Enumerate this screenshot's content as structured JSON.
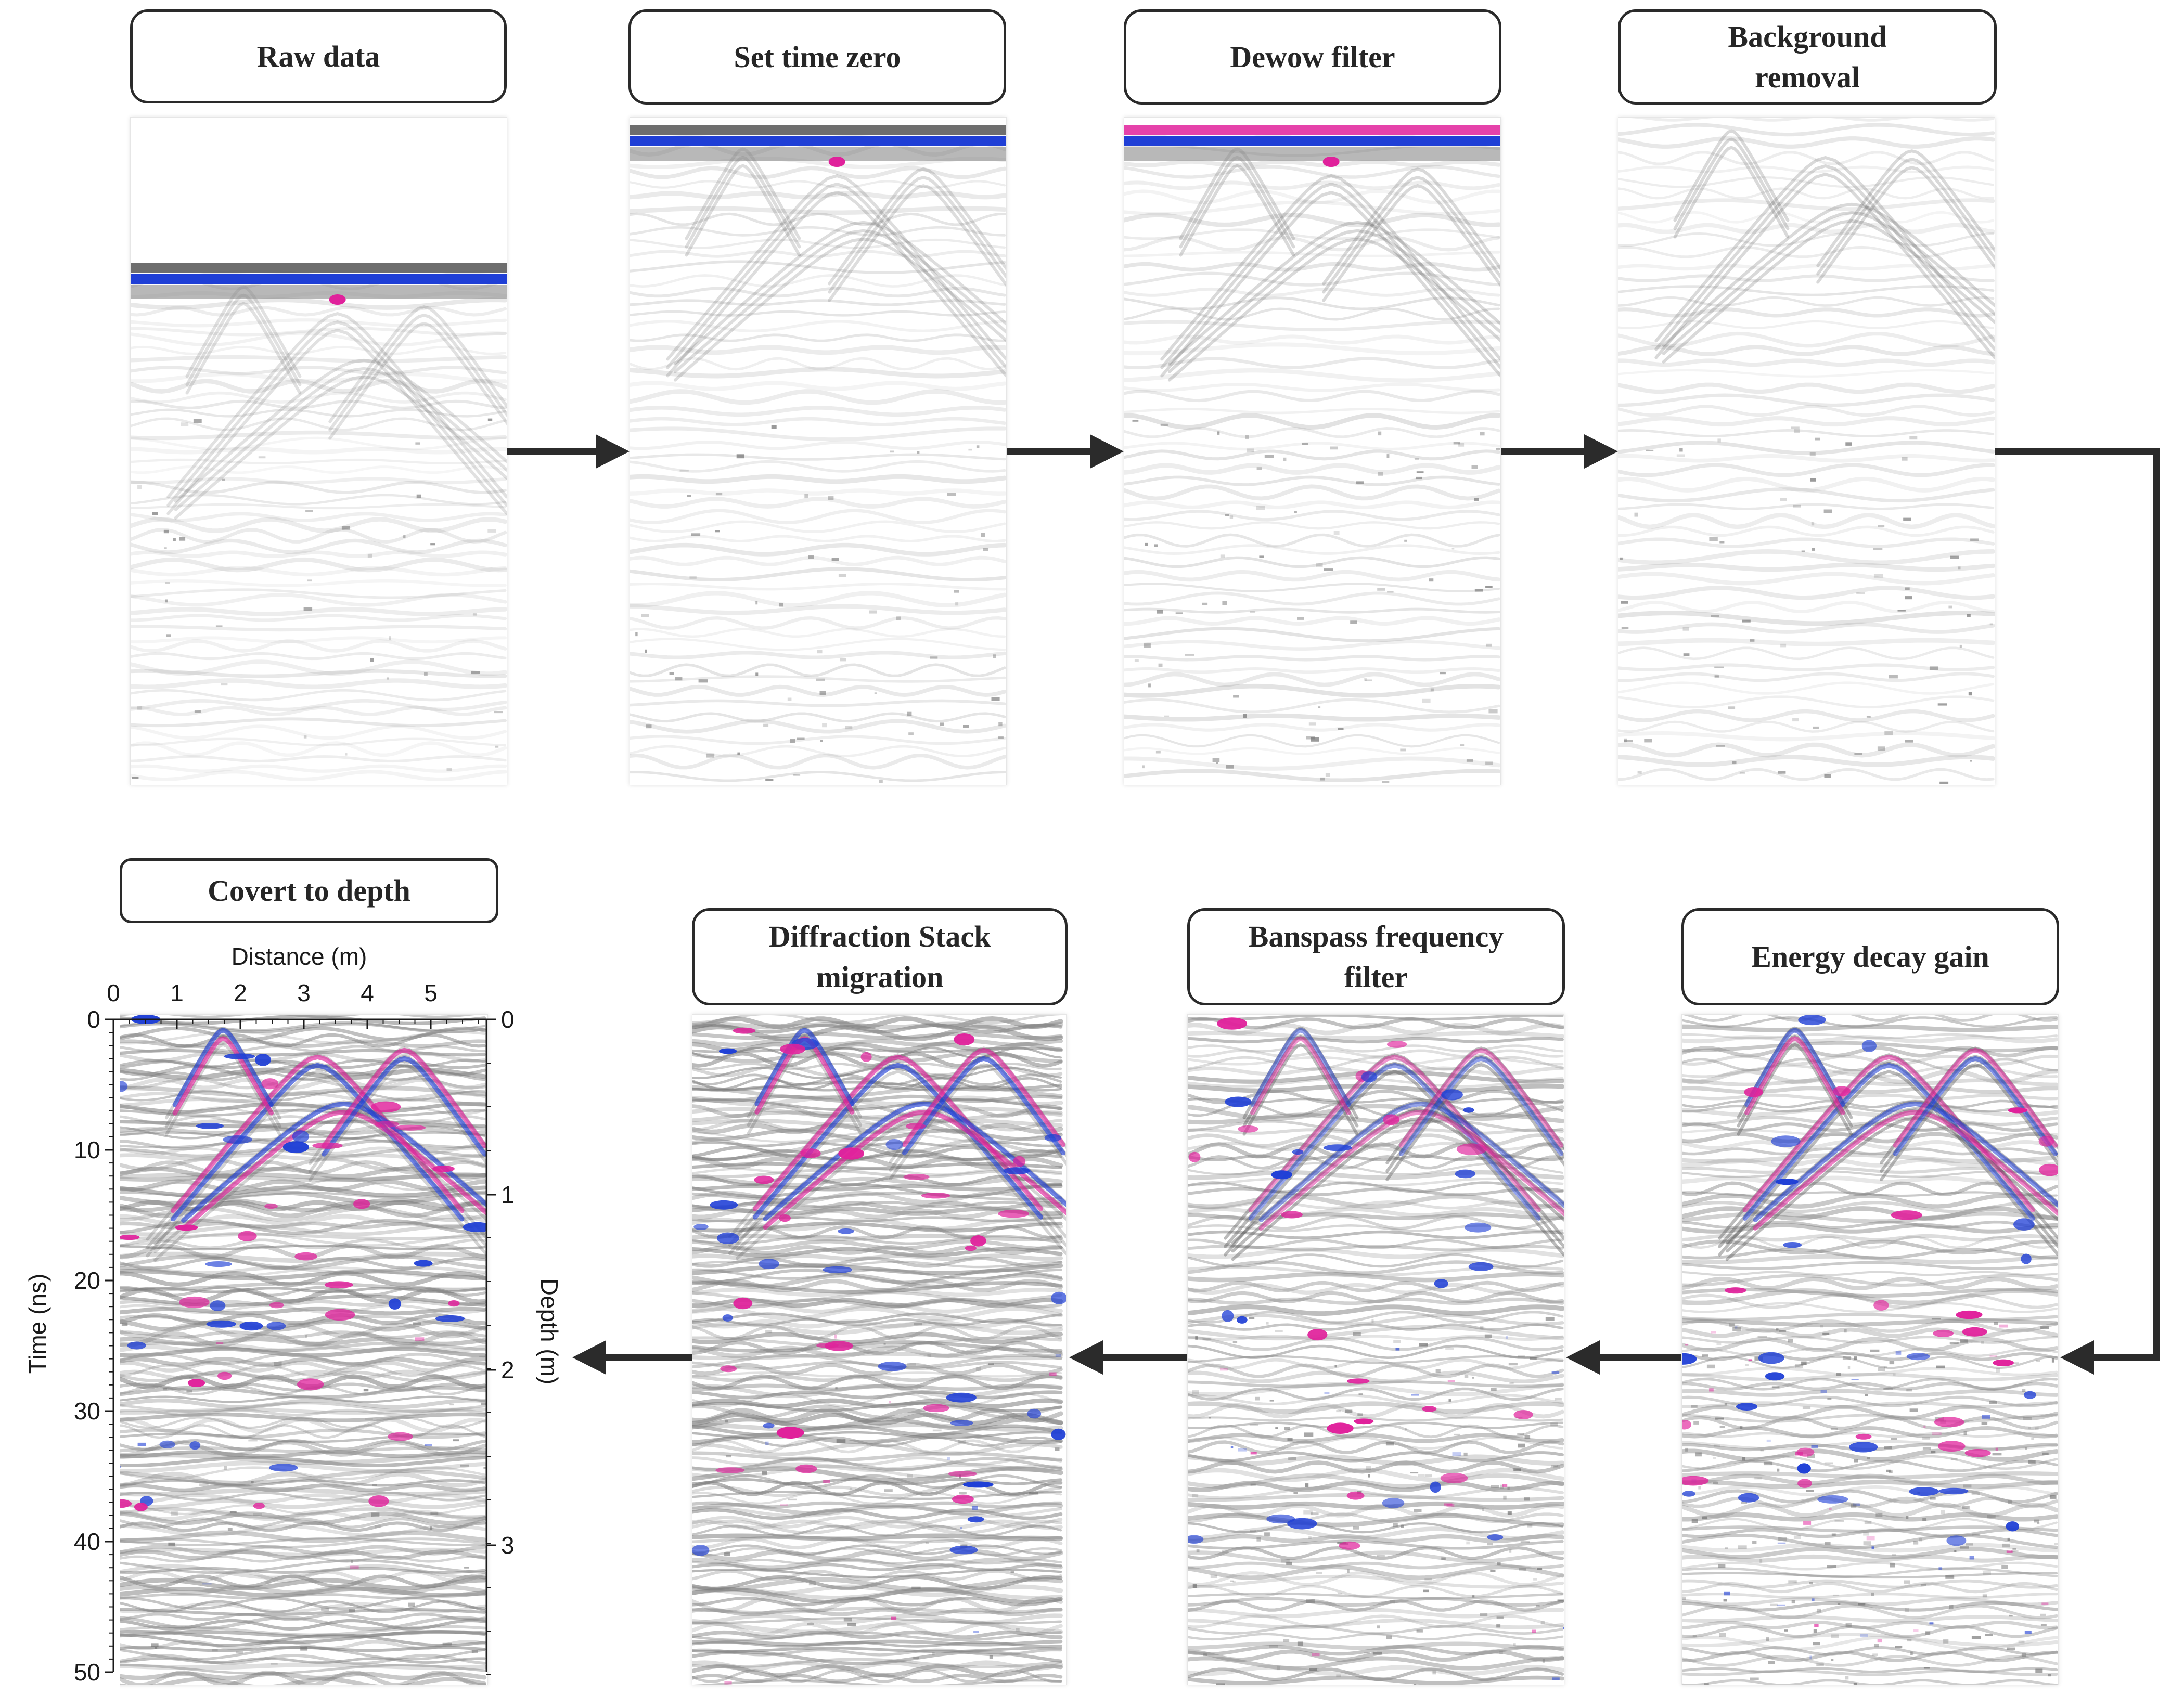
{
  "steps": [
    {
      "id": "raw",
      "title_lines": [
        "Raw data"
      ]
    },
    {
      "id": "time-zero",
      "title_lines": [
        "Set time zero"
      ]
    },
    {
      "id": "dewow",
      "title_lines": [
        "Dewow filter"
      ]
    },
    {
      "id": "background",
      "title_lines": [
        "Background",
        "removal"
      ]
    },
    {
      "id": "energy",
      "title_lines": [
        "Energy decay gain"
      ]
    },
    {
      "id": "bandpass",
      "title_lines": [
        "Banspass frequency",
        "filter"
      ]
    },
    {
      "id": "migration",
      "title_lines": [
        "Diffraction Stack",
        "migration"
      ]
    },
    {
      "id": "depth",
      "title_lines": [
        "Covert to depth"
      ]
    }
  ],
  "axes": {
    "top_label": "Distance (m)",
    "top_ticks": [
      "0",
      "1",
      "2",
      "3",
      "4",
      "5"
    ],
    "left_label": "Time (ns)",
    "left_ticks": [
      "0",
      "10",
      "20",
      "30",
      "40",
      "50"
    ],
    "right_label": "Depth (m)",
    "right_ticks": [
      "0",
      "1",
      "2",
      "3"
    ]
  },
  "colors": {
    "positive": "#e0219b",
    "negative": "#1f3fd6",
    "background": "#ffffff",
    "arrow": "#2b2b2b",
    "box_border": "#2a2a2a"
  }
}
